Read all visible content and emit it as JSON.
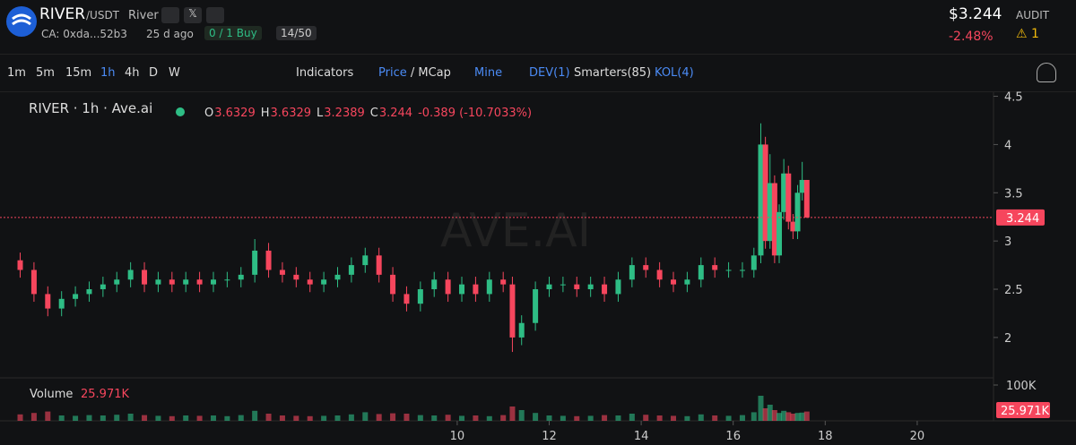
{
  "header": {
    "symbol": "RIVER",
    "pair": "/USDT",
    "name": "River",
    "contract": "CA: 0xda...52b3",
    "age": "25 d ago",
    "buys": "0 / 1 Buy",
    "holders": "14/50",
    "price": "$3.244",
    "change": "-2.48%",
    "audit": "AUDIT",
    "audit_count": "1"
  },
  "toolbar": {
    "timeframes": [
      "1m",
      "5m",
      "15m",
      "1h",
      "4h",
      "D",
      "W"
    ],
    "indicators": "Indicators",
    "price": "Price",
    "separator": "/",
    "mcap": "MCap",
    "mine": "Mine",
    "dev": "DEV(1)",
    "smarters": "Smarters(85)",
    "kol": "KOL(4)"
  },
  "chart_data": {
    "type": "candlestick",
    "title": "RIVER · 1h · Ave.ai",
    "watermark": "AVE.AI",
    "ohlc_letters": [
      "O",
      "H",
      "L",
      "C"
    ],
    "change_text": "-0.389 (-10.7033%)",
    "x": [
      0.5,
      0.8,
      1.1,
      1.4,
      1.7,
      2.0,
      2.3,
      2.6,
      2.9,
      3.2,
      3.5,
      3.8,
      4.1,
      4.4,
      4.7,
      5.0,
      5.3,
      5.6,
      5.9,
      6.2,
      6.5,
      6.8,
      7.1,
      7.4,
      7.7,
      8.0,
      8.3,
      8.6,
      8.9,
      9.2,
      9.5,
      9.8,
      10.1,
      10.4,
      10.7,
      11.0,
      11.2,
      11.4,
      11.7,
      12.0,
      12.3,
      12.6,
      12.9,
      13.2,
      13.5,
      13.8,
      14.1,
      14.4,
      14.7,
      15.0,
      15.3,
      15.6,
      15.9,
      16.2,
      16.45,
      16.6,
      16.7,
      16.8,
      16.9,
      17.0,
      17.1,
      17.2,
      17.3,
      17.4,
      17.5,
      17.6
    ],
    "open": [
      2.8,
      2.7,
      2.45,
      2.3,
      2.4,
      2.45,
      2.5,
      2.55,
      2.6,
      2.7,
      2.55,
      2.6,
      2.55,
      2.6,
      2.55,
      2.6,
      2.6,
      2.65,
      2.9,
      2.7,
      2.65,
      2.6,
      2.55,
      2.6,
      2.65,
      2.75,
      2.85,
      2.65,
      2.45,
      2.35,
      2.5,
      2.6,
      2.45,
      2.55,
      2.45,
      2.6,
      2.55,
      2.0,
      2.15,
      2.5,
      2.55,
      2.55,
      2.5,
      2.55,
      2.45,
      2.6,
      2.75,
      2.7,
      2.6,
      2.55,
      2.6,
      2.75,
      2.7,
      2.7,
      2.7,
      2.85,
      4.0,
      3.0,
      3.6,
      2.85,
      3.3,
      3.7,
      3.2,
      3.1,
      3.5,
      3.6329
    ],
    "high": [
      2.88,
      2.78,
      2.53,
      2.48,
      2.53,
      2.58,
      2.63,
      2.68,
      2.78,
      2.78,
      2.68,
      2.68,
      2.68,
      2.68,
      2.68,
      2.68,
      2.73,
      3.02,
      2.98,
      2.78,
      2.73,
      2.68,
      2.68,
      2.73,
      2.83,
      2.93,
      2.93,
      2.73,
      2.53,
      2.58,
      2.68,
      2.68,
      2.63,
      2.63,
      2.68,
      2.68,
      2.63,
      2.23,
      2.58,
      2.63,
      2.63,
      2.63,
      2.63,
      2.63,
      2.68,
      2.83,
      2.83,
      2.78,
      2.68,
      2.68,
      2.83,
      2.83,
      2.78,
      2.78,
      2.93,
      4.22,
      4.08,
      3.9,
      3.68,
      3.38,
      3.85,
      3.78,
      3.28,
      3.58,
      3.82,
      3.6329
    ],
    "low": [
      2.62,
      2.37,
      2.22,
      2.22,
      2.32,
      2.37,
      2.42,
      2.47,
      2.52,
      2.47,
      2.47,
      2.47,
      2.47,
      2.47,
      2.47,
      2.52,
      2.52,
      2.57,
      2.62,
      2.57,
      2.52,
      2.47,
      2.47,
      2.52,
      2.57,
      2.67,
      2.57,
      2.37,
      2.27,
      2.27,
      2.42,
      2.37,
      2.37,
      2.37,
      2.37,
      2.47,
      1.85,
      1.92,
      2.07,
      2.42,
      2.47,
      2.42,
      2.42,
      2.37,
      2.37,
      2.52,
      2.62,
      2.52,
      2.47,
      2.47,
      2.52,
      2.62,
      2.62,
      2.62,
      2.62,
      2.77,
      2.92,
      2.92,
      2.77,
      2.77,
      3.22,
      3.12,
      3.02,
      3.02,
      3.42,
      3.2389
    ],
    "close": [
      2.7,
      2.45,
      2.3,
      2.4,
      2.45,
      2.5,
      2.55,
      2.6,
      2.7,
      2.55,
      2.6,
      2.55,
      2.6,
      2.55,
      2.6,
      2.6,
      2.65,
      2.9,
      2.7,
      2.65,
      2.6,
      2.55,
      2.6,
      2.65,
      2.75,
      2.85,
      2.65,
      2.45,
      2.35,
      2.5,
      2.6,
      2.45,
      2.55,
      2.45,
      2.6,
      2.55,
      2.0,
      2.15,
      2.5,
      2.55,
      2.55,
      2.5,
      2.55,
      2.45,
      2.6,
      2.75,
      2.7,
      2.6,
      2.55,
      2.6,
      2.75,
      2.7,
      2.7,
      2.7,
      2.85,
      4.0,
      3.0,
      3.6,
      2.85,
      3.3,
      3.7,
      3.2,
      3.1,
      3.5,
      3.6329,
      3.244
    ],
    "up_color": "#2ebd85",
    "down_color": "#f6465d",
    "xlim": [
      0.49,
      21.6
    ],
    "xticks": [
      10,
      12,
      14,
      16,
      18,
      20
    ],
    "ylim": [
      1.6,
      4.57
    ],
    "yticks": [
      2,
      2.5,
      3,
      3.5,
      4,
      4.5
    ],
    "volume": {
      "name": "Volume",
      "last_label": "25.971K",
      "values": [
        18000,
        22000,
        26000,
        15000,
        14000,
        16000,
        15000,
        17000,
        20000,
        16000,
        14000,
        13000,
        15000,
        14000,
        15000,
        13000,
        16000,
        28000,
        20000,
        15000,
        14000,
        13000,
        14000,
        15000,
        18000,
        24000,
        19000,
        21000,
        20000,
        16000,
        15000,
        17000,
        14000,
        15000,
        13000,
        16000,
        40000,
        30000,
        22000,
        15000,
        14000,
        13000,
        14000,
        16000,
        15000,
        20000,
        17000,
        15000,
        14000,
        13000,
        18000,
        15000,
        14000,
        16000,
        24000,
        70000,
        35000,
        45000,
        30000,
        22000,
        28000,
        24000,
        20000,
        22000,
        23000,
        25971
      ],
      "ylim": [
        0,
        120000
      ],
      "yticks": [
        {
          "value": 100000,
          "label": "100K"
        }
      ]
    }
  }
}
